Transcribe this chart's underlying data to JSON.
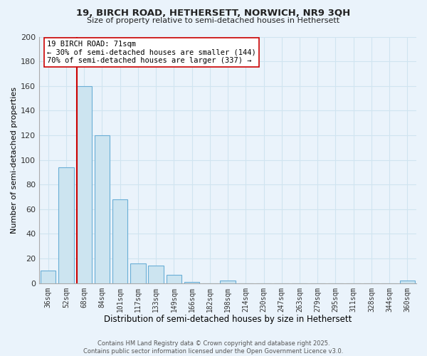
{
  "title1": "19, BIRCH ROAD, HETHERSETT, NORWICH, NR9 3QH",
  "title2": "Size of property relative to semi-detached houses in Hethersett",
  "bar_labels": [
    "36sqm",
    "52sqm",
    "68sqm",
    "84sqm",
    "101sqm",
    "117sqm",
    "133sqm",
    "149sqm",
    "166sqm",
    "182sqm",
    "198sqm",
    "214sqm",
    "230sqm",
    "247sqm",
    "263sqm",
    "279sqm",
    "295sqm",
    "311sqm",
    "328sqm",
    "344sqm",
    "360sqm"
  ],
  "bar_values": [
    10,
    94,
    160,
    120,
    68,
    16,
    14,
    7,
    1,
    0,
    2,
    0,
    0,
    0,
    0,
    0,
    0,
    0,
    0,
    0,
    2
  ],
  "bar_color": "#cce4f0",
  "bar_edgecolor": "#6aaed6",
  "vline_color": "#cc0000",
  "annotation_title": "19 BIRCH ROAD: 71sqm",
  "annotation_line1": "← 30% of semi-detached houses are smaller (144)",
  "annotation_line2": "70% of semi-detached houses are larger (337) →",
  "xlabel": "Distribution of semi-detached houses by size in Hethersett",
  "ylabel": "Number of semi-detached properties",
  "ylim": [
    0,
    200
  ],
  "yticks": [
    0,
    20,
    40,
    60,
    80,
    100,
    120,
    140,
    160,
    180,
    200
  ],
  "footer1": "Contains HM Land Registry data © Crown copyright and database right 2025.",
  "footer2": "Contains public sector information licensed under the Open Government Licence v3.0.",
  "bg_color": "#eaf3fb",
  "grid_color": "#d0e4f0"
}
